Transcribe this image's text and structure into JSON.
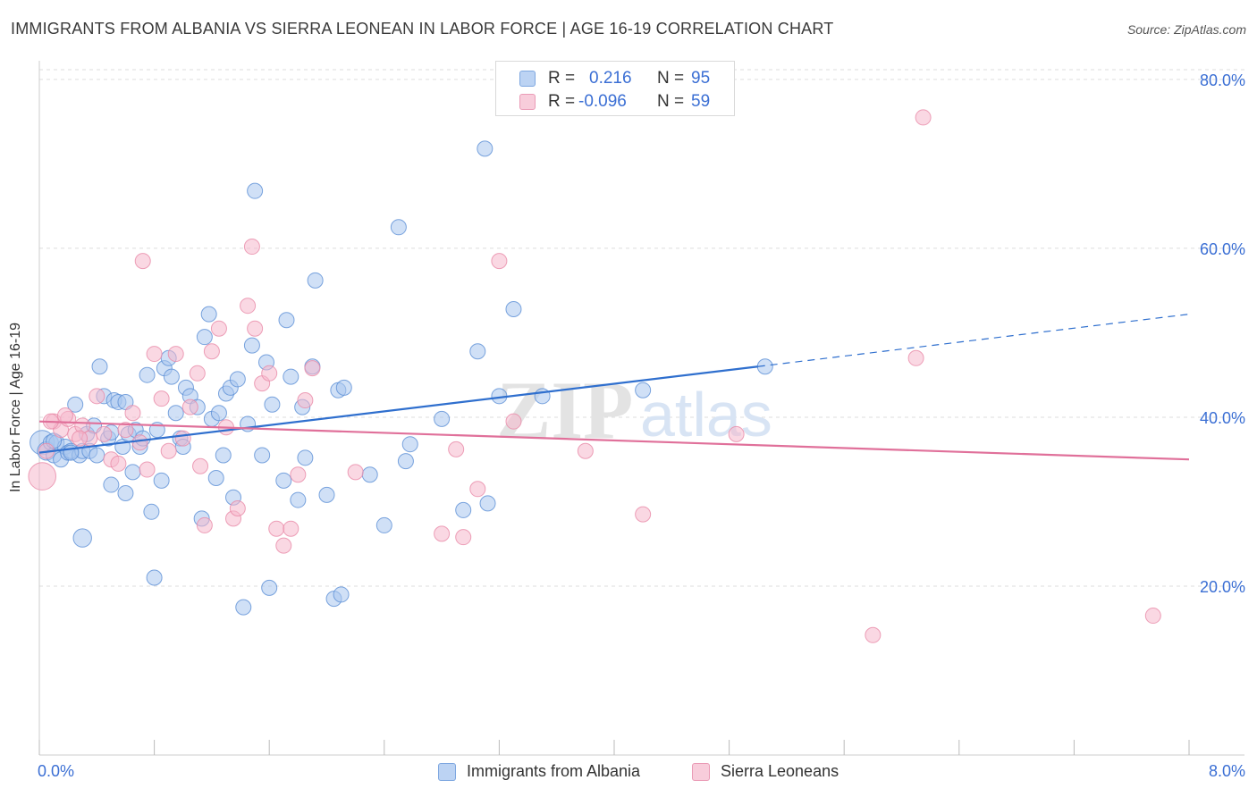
{
  "title": "IMMIGRANTS FROM ALBANIA VS SIERRA LEONEAN IN LABOR FORCE | AGE 16-19 CORRELATION CHART",
  "source": "Source: ZipAtlas.com",
  "watermark": {
    "zip": "ZIP",
    "atlas": "atlas"
  },
  "legend": {
    "series1": {
      "r_label": "R =",
      "r_value": "0.216",
      "n_label": "N =",
      "n_value": "95"
    },
    "series2": {
      "r_label": "R =",
      "r_value": "-0.096",
      "n_label": "N =",
      "n_value": "59"
    }
  },
  "colors": {
    "blue_fill": "#a9c6ef",
    "blue_stroke": "#5b8fd6",
    "blue_line": "#2f6fce",
    "pink_fill": "#f5b8cc",
    "pink_stroke": "#e88aa8",
    "pink_line": "#e0709a",
    "grid": "#dddddd",
    "axis_text": "#3b6fd4"
  },
  "chart_data": {
    "type": "scatter",
    "title": "IMMIGRANTS FROM ALBANIA VS SIERRA LEONEAN IN LABOR FORCE | AGE 16-19 CORRELATION CHART",
    "xlabel": "",
    "ylabel": "In Labor Force | Age 16-19",
    "xlim": [
      0,
      8.0
    ],
    "ylim": [
      0,
      82
    ],
    "x_tick_labels": [
      "0.0%",
      "8.0%"
    ],
    "y_ticks": [
      20,
      40,
      60,
      80
    ],
    "y_tick_labels": [
      "20.0%",
      "40.0%",
      "60.0%",
      "80.0%"
    ],
    "series": [
      {
        "name": "Immigrants from Albania",
        "color": "#a9c6ef",
        "trend": {
          "x_start": 0.0,
          "y_start": 35.8,
          "x_solid_end": 5.0,
          "y_solid_end": 46.0,
          "x_end": 8.0,
          "y_end": 52.2
        },
        "points": [
          [
            0.02,
            37,
            16
          ],
          [
            0.05,
            36,
            12
          ],
          [
            0.08,
            37,
            10
          ],
          [
            0.1,
            35.5,
            10
          ],
          [
            0.12,
            37,
            10
          ],
          [
            0.15,
            35,
            10
          ],
          [
            0.18,
            36.5,
            10
          ],
          [
            0.2,
            35.8,
            10
          ],
          [
            0.22,
            36,
            10
          ],
          [
            0.25,
            41.5,
            10
          ],
          [
            0.28,
            35.5,
            10
          ],
          [
            0.3,
            36,
            10
          ],
          [
            0.33,
            38,
            10
          ],
          [
            0.35,
            36,
            10
          ],
          [
            0.38,
            39,
            10
          ],
          [
            0.4,
            35.5,
            10
          ],
          [
            0.42,
            46,
            10
          ],
          [
            0.45,
            42.5,
            10
          ],
          [
            0.48,
            37.5,
            10
          ],
          [
            0.5,
            32,
            10
          ],
          [
            0.52,
            42,
            10
          ],
          [
            0.55,
            41.8,
            10
          ],
          [
            0.58,
            36.5,
            10
          ],
          [
            0.6,
            31,
            10
          ],
          [
            0.62,
            38,
            10
          ],
          [
            0.65,
            33.5,
            10
          ],
          [
            0.67,
            38.5,
            10
          ],
          [
            0.7,
            36.5,
            10
          ],
          [
            0.72,
            37.5,
            10
          ],
          [
            0.75,
            45,
            10
          ],
          [
            0.78,
            28.8,
            10
          ],
          [
            0.8,
            21,
            10
          ],
          [
            0.82,
            38.5,
            10
          ],
          [
            0.85,
            32.5,
            10
          ],
          [
            0.87,
            45.8,
            10
          ],
          [
            0.9,
            47,
            10
          ],
          [
            0.92,
            44.8,
            10
          ],
          [
            0.95,
            40.5,
            10
          ],
          [
            0.98,
            37.5,
            10
          ],
          [
            1.0,
            36.5,
            10
          ],
          [
            1.02,
            43.5,
            10
          ],
          [
            1.05,
            42.5,
            10
          ],
          [
            1.1,
            41.2,
            10
          ],
          [
            1.13,
            28,
            10
          ],
          [
            1.15,
            49.5,
            10
          ],
          [
            1.18,
            52.2,
            10
          ],
          [
            1.2,
            39.8,
            10
          ],
          [
            1.23,
            32.8,
            10
          ],
          [
            1.25,
            40.5,
            10
          ],
          [
            1.28,
            35.5,
            10
          ],
          [
            1.3,
            42.8,
            10
          ],
          [
            1.33,
            43.5,
            10
          ],
          [
            1.35,
            30.5,
            10
          ],
          [
            1.38,
            44.5,
            10
          ],
          [
            1.42,
            17.5,
            10
          ],
          [
            1.45,
            39.2,
            10
          ],
          [
            1.48,
            48.5,
            10
          ],
          [
            1.5,
            66.8,
            10
          ],
          [
            1.55,
            35.5,
            10
          ],
          [
            1.58,
            46.5,
            10
          ],
          [
            1.6,
            19.8,
            10
          ],
          [
            1.62,
            41.5,
            10
          ],
          [
            1.7,
            32.5,
            10
          ],
          [
            1.72,
            51.5,
            10
          ],
          [
            1.75,
            44.8,
            10
          ],
          [
            1.8,
            30.2,
            10
          ],
          [
            1.83,
            41.2,
            10
          ],
          [
            1.85,
            35.2,
            10
          ],
          [
            1.9,
            46,
            10
          ],
          [
            1.92,
            56.2,
            10
          ],
          [
            2.0,
            30.8,
            10
          ],
          [
            2.05,
            18.5,
            10
          ],
          [
            2.08,
            43.2,
            10
          ],
          [
            2.1,
            19,
            10
          ],
          [
            2.12,
            43.5,
            10
          ],
          [
            2.3,
            33.2,
            10
          ],
          [
            2.4,
            27.2,
            10
          ],
          [
            2.5,
            62.5,
            10
          ],
          [
            2.55,
            34.8,
            10
          ],
          [
            2.58,
            36.8,
            10
          ],
          [
            2.8,
            39.8,
            10
          ],
          [
            2.95,
            29,
            10
          ],
          [
            3.05,
            47.8,
            10
          ],
          [
            3.1,
            71.8,
            10
          ],
          [
            3.12,
            29.8,
            10
          ],
          [
            3.2,
            42.5,
            10
          ],
          [
            3.3,
            52.8,
            10
          ],
          [
            3.5,
            42.5,
            10
          ],
          [
            4.2,
            43.2,
            10
          ],
          [
            5.05,
            46,
            10
          ],
          [
            0.3,
            25.7,
            12
          ],
          [
            0.1,
            37.2,
            10
          ],
          [
            0.22,
            35.8,
            10
          ],
          [
            0.5,
            38.2,
            10
          ],
          [
            0.6,
            41.8,
            10
          ]
        ]
      },
      {
        "name": "Sierra Leoneans",
        "color": "#f5b8cc",
        "trend": {
          "x_start": 0.0,
          "y_start": 39.5,
          "x_end": 8.0,
          "y_end": 35.0
        },
        "points": [
          [
            0.02,
            33,
            18
          ],
          [
            0.05,
            36,
            10
          ],
          [
            0.1,
            39.5,
            10
          ],
          [
            0.15,
            38.5,
            10
          ],
          [
            0.2,
            39.8,
            10
          ],
          [
            0.25,
            38,
            10
          ],
          [
            0.3,
            39,
            10
          ],
          [
            0.35,
            37.5,
            10
          ],
          [
            0.4,
            42.5,
            10
          ],
          [
            0.45,
            38,
            10
          ],
          [
            0.5,
            35,
            10
          ],
          [
            0.55,
            34.5,
            10
          ],
          [
            0.6,
            38.5,
            10
          ],
          [
            0.65,
            40.5,
            10
          ],
          [
            0.7,
            37,
            10
          ],
          [
            0.72,
            58.5,
            10
          ],
          [
            0.75,
            33.8,
            10
          ],
          [
            0.8,
            47.5,
            10
          ],
          [
            0.85,
            42.2,
            10
          ],
          [
            0.9,
            36,
            10
          ],
          [
            0.95,
            47.5,
            10
          ],
          [
            1.0,
            37.5,
            10
          ],
          [
            1.05,
            41.2,
            10
          ],
          [
            1.1,
            45.2,
            10
          ],
          [
            1.12,
            34.2,
            10
          ],
          [
            1.15,
            27.2,
            10
          ],
          [
            1.2,
            47.8,
            10
          ],
          [
            1.25,
            50.5,
            10
          ],
          [
            1.3,
            38.8,
            10
          ],
          [
            1.35,
            28,
            10
          ],
          [
            1.38,
            29.2,
            10
          ],
          [
            1.45,
            53.2,
            10
          ],
          [
            1.48,
            60.2,
            10
          ],
          [
            1.5,
            50.5,
            10
          ],
          [
            1.55,
            44,
            10
          ],
          [
            1.6,
            45.2,
            10
          ],
          [
            1.65,
            26.8,
            10
          ],
          [
            1.7,
            24.8,
            10
          ],
          [
            1.75,
            26.8,
            10
          ],
          [
            1.8,
            33.2,
            10
          ],
          [
            1.85,
            42,
            10
          ],
          [
            1.9,
            45.8,
            10
          ],
          [
            2.2,
            33.5,
            10
          ],
          [
            2.8,
            26.2,
            10
          ],
          [
            2.9,
            36.2,
            10
          ],
          [
            2.95,
            25.8,
            10
          ],
          [
            3.05,
            31.5,
            10
          ],
          [
            3.2,
            58.5,
            10
          ],
          [
            3.3,
            39.5,
            10
          ],
          [
            3.8,
            36,
            10
          ],
          [
            4.2,
            28.5,
            10
          ],
          [
            4.85,
            38,
            10
          ],
          [
            5.8,
            14.2,
            10
          ],
          [
            6.1,
            47,
            10
          ],
          [
            6.15,
            75.5,
            10
          ],
          [
            7.75,
            16.5,
            10
          ],
          [
            0.08,
            39.5,
            10
          ],
          [
            0.18,
            40.2,
            10
          ],
          [
            0.28,
            37.5,
            10
          ]
        ]
      }
    ]
  },
  "bottom_legend": {
    "item1": "Immigrants from Albania",
    "item2": "Sierra Leoneans"
  }
}
